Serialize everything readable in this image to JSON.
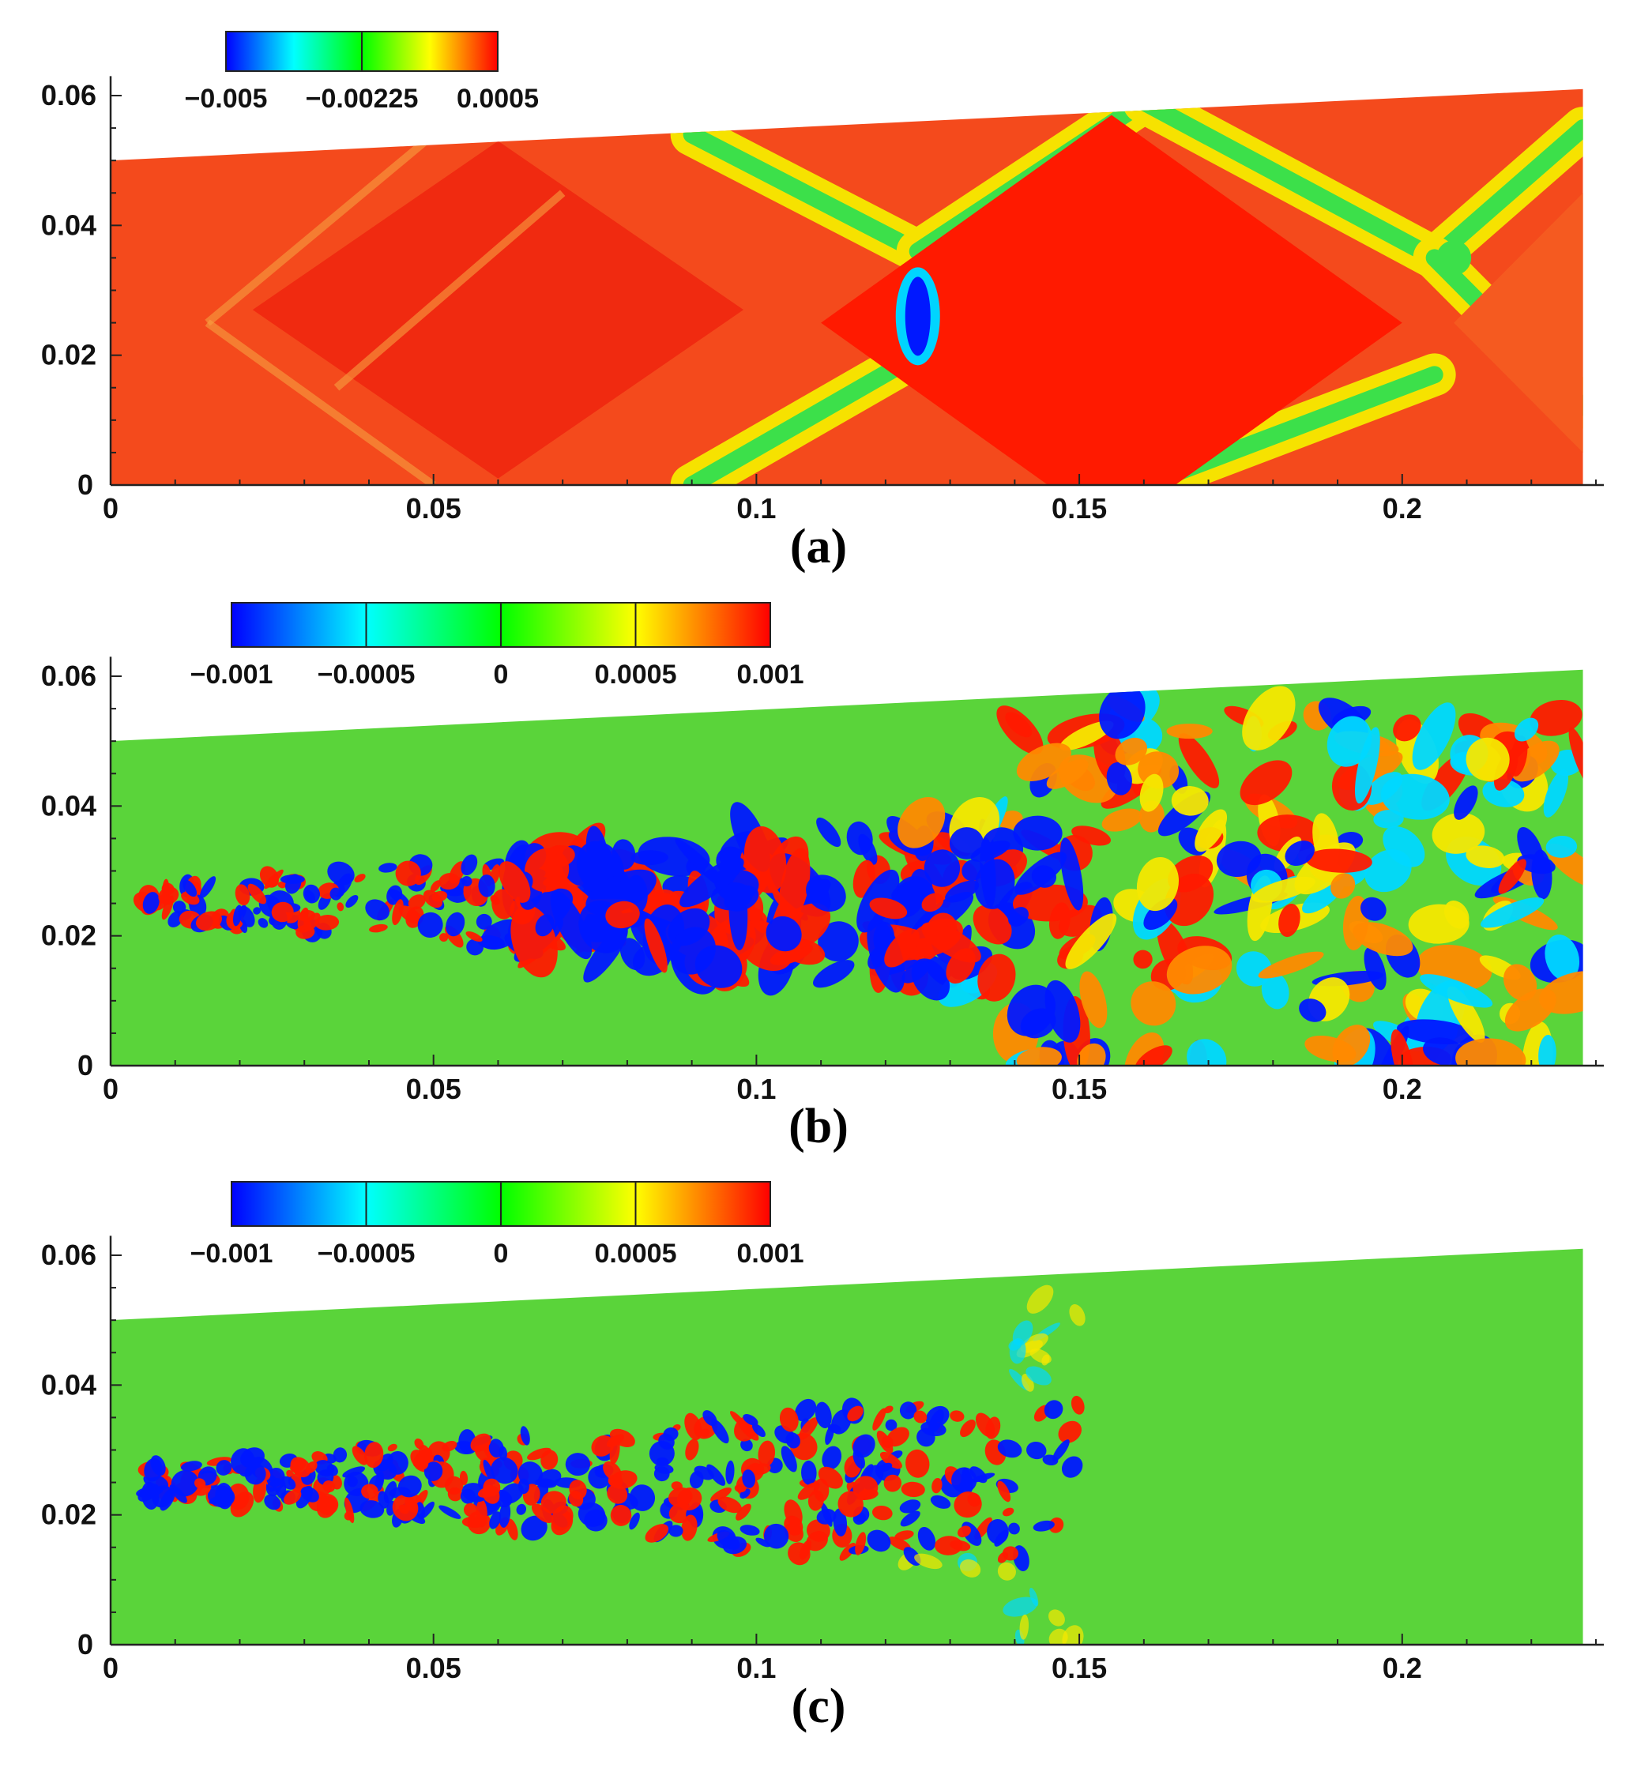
{
  "chart_data": [
    {
      "type": "heatmap",
      "panel_label": "(a)",
      "x_ticks": [
        "0",
        "0.05",
        "0.1",
        "0.15",
        "0.2"
      ],
      "y_ticks": [
        "0",
        "0.02",
        "0.04",
        "0.06"
      ],
      "xlim": [
        0,
        0.23
      ],
      "ylim": [
        0,
        0.062
      ],
      "domain_top_edge": [
        [
          0,
          0.05
        ],
        [
          0.228,
          0.061
        ]
      ],
      "colorbar": {
        "labels": [
          "−0.005",
          "−0.00225",
          "0.0005"
        ],
        "tick_values": [
          -0.005,
          -0.00225,
          0.0005
        ],
        "range": [
          -0.005,
          0.0005
        ],
        "colormap": [
          "#0000ff",
          "#00ffff",
          "#00ff00",
          "#ffff00",
          "#ff0000"
        ]
      },
      "features": {
        "background_color": "#f44a1c",
        "diamond_cells_x_centers": [
          0.06,
          0.155,
          0.225
        ],
        "low_value_spot": {
          "x": 0.125,
          "y": 0.026,
          "value": -0.005
        }
      }
    },
    {
      "type": "heatmap",
      "panel_label": "(b)",
      "x_ticks": [
        "0",
        "0.05",
        "0.1",
        "0.15",
        "0.2"
      ],
      "y_ticks": [
        "0",
        "0.02",
        "0.04",
        "0.06"
      ],
      "xlim": [
        0,
        0.23
      ],
      "ylim": [
        0,
        0.062
      ],
      "domain_top_edge": [
        [
          0,
          0.05
        ],
        [
          0.228,
          0.061
        ]
      ],
      "colorbar": {
        "labels": [
          "−0.001",
          "−0.0005",
          "0",
          "0.0005",
          "0.001"
        ],
        "tick_values": [
          -0.001,
          -0.0005,
          0,
          0.0005,
          0.001
        ],
        "range": [
          -0.001,
          0.001
        ],
        "colormap": [
          "#0000ff",
          "#00ffff",
          "#00ff00",
          "#ffff00",
          "#ff0000"
        ]
      },
      "features": {
        "background_color": "#5ad43a",
        "jet_axis_y": 0.025,
        "fluctuation_region_x": [
          0.005,
          0.228
        ]
      }
    },
    {
      "type": "heatmap",
      "panel_label": "(c)",
      "x_ticks": [
        "0",
        "0.05",
        "0.1",
        "0.15",
        "0.2"
      ],
      "y_ticks": [
        "0",
        "0.02",
        "0.04",
        "0.06"
      ],
      "xlim": [
        0,
        0.23
      ],
      "ylim": [
        0,
        0.062
      ],
      "domain_top_edge": [
        [
          0,
          0.05
        ],
        [
          0.228,
          0.061
        ]
      ],
      "colorbar": {
        "labels": [
          "−0.001",
          "−0.0005",
          "0",
          "0.0005",
          "0.001"
        ],
        "tick_values": [
          -0.001,
          -0.0005,
          0,
          0.0005,
          0.001
        ],
        "range": [
          -0.001,
          0.001
        ],
        "colormap": [
          "#0000ff",
          "#00ffff",
          "#00ff00",
          "#ffff00",
          "#ff0000"
        ]
      },
      "features": {
        "background_color": "#5ad43a",
        "jet_axis_y": 0.025,
        "fluctuation_region_x": [
          0.005,
          0.15
        ]
      }
    }
  ]
}
